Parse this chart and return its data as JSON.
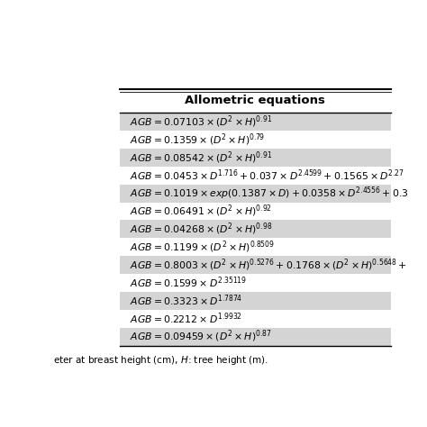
{
  "title": "Allometric equations",
  "equations_math": [
    "$AGB = 0.07103 \\times(D^2\\times H)^{0.91}$",
    "$AGB = 0.1359 \\times(D^2\\times H)^{0.79}$",
    "$AGB = 0.08542 \\times(D^2\\times H)^{0.91}$",
    "$AGB = 0.0453 \\times D^{1.716}+0.037 \\times D^{2.4599}+0.1565 \\times D^{2.27}$",
    "$AGB = 0.1019 \\times exp(0.1387 \\times D)+0.0358 \\times D^{2.4556}+0.3$",
    "$AGB = 0.06491 \\times(D^2\\times H)^{0.92}$",
    "$AGB = 0.04268 \\times(D^2\\times H)^{0.98}$",
    "$AGB = 0.1199 \\times(D^2\\times H)^{0.8509}$",
    "$AGB = 0.8003 \\times(D^2\\times H)^{0.5276}+0.1768 \\times(D^2\\times H)^{0.5648}+$",
    "$AGB = 0.1599 \\times D^{2.35119}$",
    "$AGB = 0.3323 \\times D^{1.7874}$",
    "$AGB = 0.2212 \\times D^{1.9932}$",
    "$AGB = 0.09459 \\times (D^2\\times H)^{0.87}$"
  ],
  "row_shading": [
    true,
    false,
    true,
    false,
    true,
    false,
    true,
    false,
    true,
    false,
    true,
    false,
    true
  ],
  "shading_color": "#d4d4d4",
  "text_color": "#000000",
  "footer_text": "eter at breast height (cm), $H$: tree height (m).",
  "background_color": "#ffffff",
  "title_fontsize": 9.5,
  "eq_fontsize": 7.8
}
